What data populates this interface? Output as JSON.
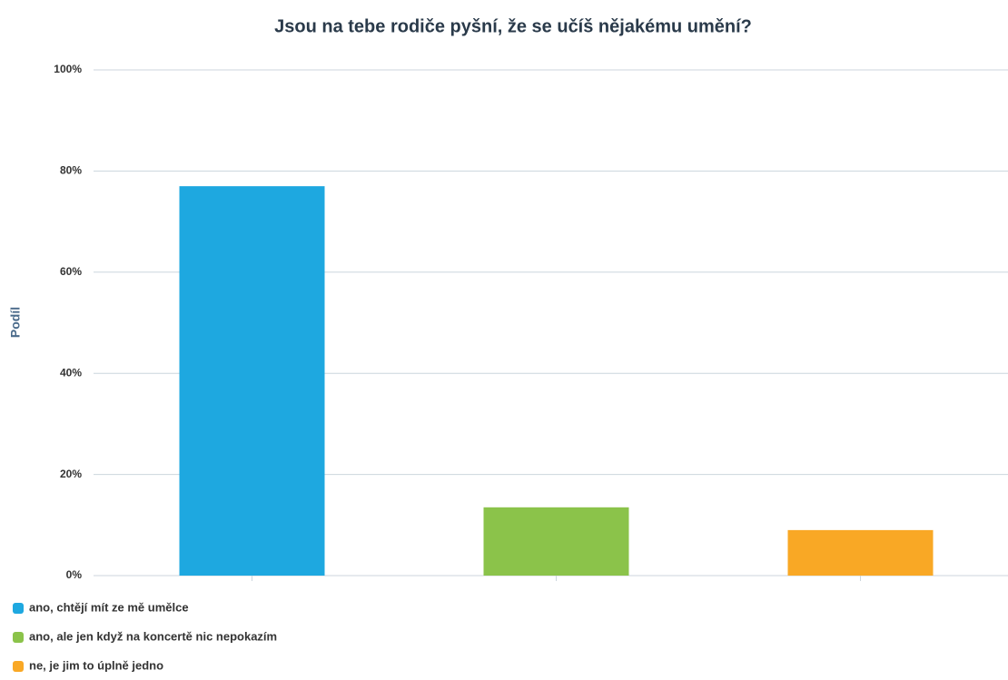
{
  "chart_data": {
    "type": "bar",
    "title": "Jsou na tebe rodiče pyšní, že se učíš nějakému umění?",
    "y_label": "Podíl",
    "categories": [
      "ano, chtějí mít ze mě umělce",
      "ano, ale jen když na koncertě nic nepokazím",
      "ne, je jim to úplně jedno"
    ],
    "values": [
      77,
      13.5,
      9
    ],
    "colors": [
      "#1ea8e0",
      "#8bc34a",
      "#f9a825"
    ],
    "ylim": [
      0,
      100
    ],
    "yticks": [
      {
        "value": 0,
        "label": "0%"
      },
      {
        "value": 20,
        "label": "20%"
      },
      {
        "value": 40,
        "label": "40%"
      },
      {
        "value": 60,
        "label": "60%"
      },
      {
        "value": 80,
        "label": "80%"
      },
      {
        "value": 100,
        "label": "100%"
      }
    ],
    "grid": true
  }
}
